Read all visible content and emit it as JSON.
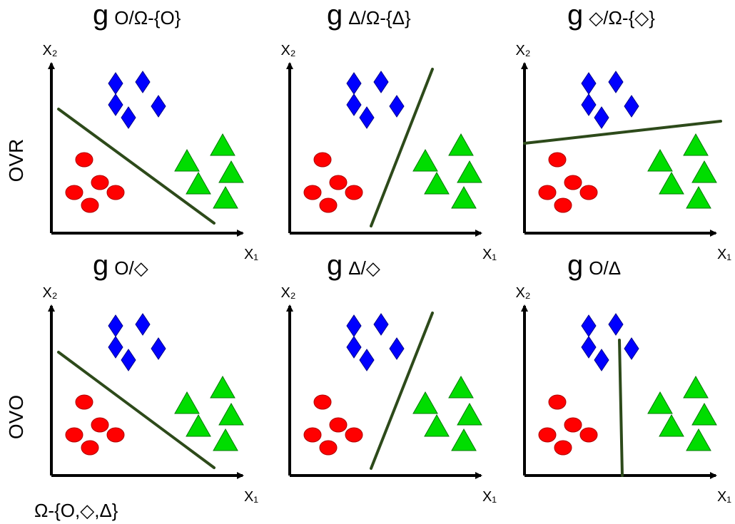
{
  "colors": {
    "circle": "#ff0000",
    "diamond": "#0000ff",
    "triangle": "#00dd00",
    "boundary": "#2d4a1a",
    "axis": "#000000"
  },
  "row_labels": {
    "ovr": "OVR",
    "ovo": "OVO"
  },
  "footnote": "Ω-{O,◇,Δ}",
  "axis_labels": {
    "x1": "X₁",
    "x2": "X₂"
  },
  "panels": [
    {
      "id": "ovr-circle",
      "g": "g",
      "label": "O/Ω-{O}",
      "boundary": "circle-vs-rest"
    },
    {
      "id": "ovr-triangle",
      "g": "g",
      "label": "Δ/Ω-{Δ}",
      "boundary": "triangle-vs-rest"
    },
    {
      "id": "ovr-diamond",
      "g": "g",
      "label": "◇/Ω-{◇}",
      "boundary": "diamond-vs-rest"
    },
    {
      "id": "ovo-circle-diamond",
      "g": "g",
      "label": "O/◇",
      "boundary": "circle-vs-diamond"
    },
    {
      "id": "ovo-triangle-diamond",
      "g": "g",
      "label": "Δ/◇",
      "boundary": "triangle-vs-diamond"
    },
    {
      "id": "ovo-circle-triangle",
      "g": "g",
      "label": "O/Δ",
      "boundary": "circle-vs-triangle"
    }
  ]
}
